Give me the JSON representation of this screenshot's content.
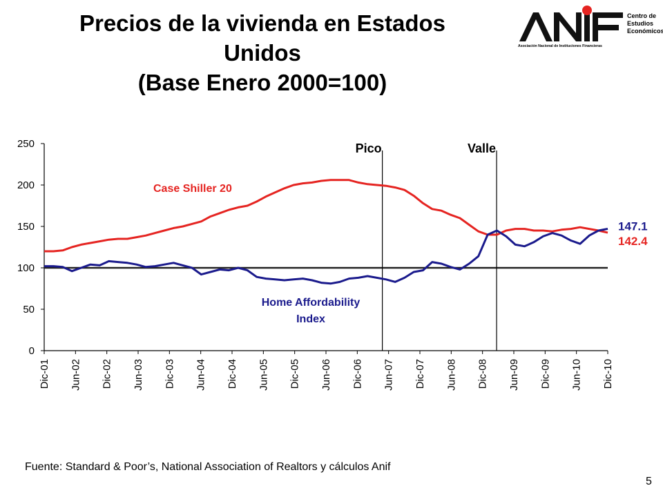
{
  "slide": {
    "title_line1": "Precios de la vivienda en Estados",
    "title_line2": "Unidos",
    "title_line3": "(Base Enero 2000=100)",
    "source": "Fuente: Standard & Poor’s, National Association of Realtors y cálculos Anif",
    "page_number": "5"
  },
  "logo": {
    "wordmark": "ANIF",
    "side_line1": "Centro de",
    "side_line2": "Estudios",
    "side_line3": "Económicos",
    "subtitle": "Asociación Nacional de Instituciones Financieras",
    "accent_color": "#e52421"
  },
  "chart_data": {
    "type": "line",
    "x_tick_labels": [
      "Dic-01",
      "Jun-02",
      "Dic-02",
      "Jun-03",
      "Dic-03",
      "Jun-04",
      "Dic-04",
      "Jun-05",
      "Dic-05",
      "Jun-06",
      "Dic-06",
      "Jun-07",
      "Dic-07",
      "Jun-08",
      "Dic-08",
      "Jun-09",
      "Dic-09",
      "Jun-10",
      "Dic-10"
    ],
    "ylim": [
      0,
      250
    ],
    "y_ticks": [
      0,
      50,
      100,
      150,
      200,
      250
    ],
    "reference_line": 100,
    "vlines": [
      {
        "label": "Pico",
        "position": 10.8
      },
      {
        "label": "Valle",
        "position": 14.45
      }
    ],
    "series": [
      {
        "name": "Case Shiller 20",
        "color": "#e52421",
        "end_label": "142.4",
        "values": [
          120,
          120,
          121,
          125,
          128,
          130,
          132,
          134,
          135,
          135,
          137,
          139,
          142,
          145,
          148,
          150,
          153,
          156,
          162,
          166,
          170,
          173,
          175,
          180,
          186,
          191,
          196,
          200,
          202,
          203,
          205,
          206,
          206,
          206,
          203,
          201,
          200,
          199,
          197,
          194,
          187,
          178,
          171,
          169,
          164,
          160,
          152,
          144,
          140,
          140,
          145,
          147,
          147,
          145,
          145,
          144,
          146,
          147,
          149,
          147,
          145,
          142.4
        ]
      },
      {
        "name": "Home Affordability Index",
        "color": "#1a1a8c",
        "end_label": "147.1",
        "values": [
          102,
          102,
          101,
          96,
          100,
          104,
          103,
          108,
          107,
          106,
          104,
          101,
          102,
          104,
          106,
          103,
          100,
          92,
          95,
          98,
          97,
          100,
          97,
          89,
          87,
          86,
          85,
          86,
          87,
          85,
          82,
          81,
          83,
          87,
          88,
          90,
          88,
          86,
          83,
          88,
          95,
          97,
          107,
          105,
          101,
          98,
          105,
          114,
          140,
          145,
          138,
          128,
          126,
          131,
          138,
          142,
          139,
          133,
          129,
          139,
          145,
          147.1
        ]
      }
    ],
    "annotations": [
      {
        "text": "Case Shiller 20",
        "color": "#e52421"
      },
      {
        "text_line1": "Home Affordability",
        "text_line2": "Index",
        "color": "#1a1a8c"
      }
    ]
  }
}
